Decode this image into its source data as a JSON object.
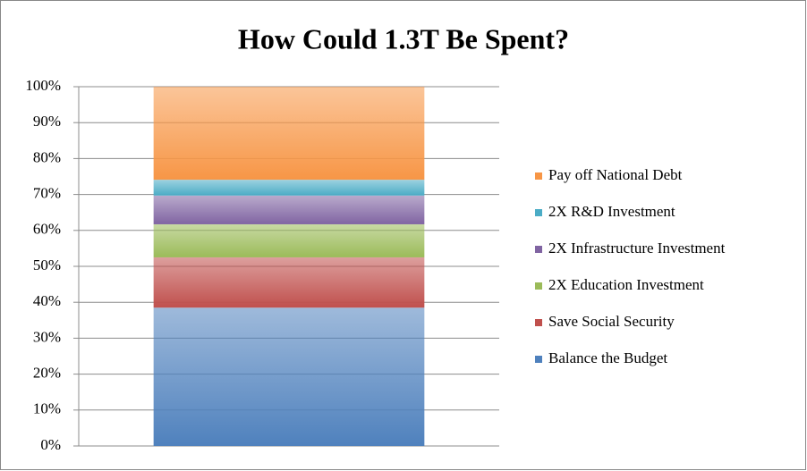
{
  "chart_data": {
    "type": "stacked_bar_100",
    "title": "How Could 1.3T Be Spent?",
    "categories": [
      null
    ],
    "series": [
      {
        "name": "Balance the Budget",
        "color": "#4f81bd",
        "values": [
          38.5
        ]
      },
      {
        "name": "Save Social Security",
        "color": "#c0504d",
        "values": [
          14
        ]
      },
      {
        "name": "2X Education Investment",
        "color": "#9bbb59",
        "values": [
          9.2
        ]
      },
      {
        "name": "2X Infrastructure Investment",
        "color": "#8064a2",
        "values": [
          8
        ]
      },
      {
        "name": "2X R&D Investment",
        "color": "#4bacc6",
        "values": [
          4.4
        ]
      },
      {
        "name": "Pay off National Debt",
        "color": "#f79646",
        "values": [
          25.9
        ]
      }
    ],
    "ylim": [
      0,
      100
    ],
    "yticks": [
      {
        "value": 0,
        "label": "0%"
      },
      {
        "value": 10,
        "label": "10%"
      },
      {
        "value": 20,
        "label": "20%"
      },
      {
        "value": 30,
        "label": "30%"
      },
      {
        "value": 40,
        "label": "40%"
      },
      {
        "value": 50,
        "label": "50%"
      },
      {
        "value": 60,
        "label": "60%"
      },
      {
        "value": 70,
        "label": "70%"
      },
      {
        "value": 80,
        "label": "80%"
      },
      {
        "value": 90,
        "label": "90%"
      },
      {
        "value": 100,
        "label": "100%"
      }
    ],
    "grid": true,
    "legend": "right"
  }
}
